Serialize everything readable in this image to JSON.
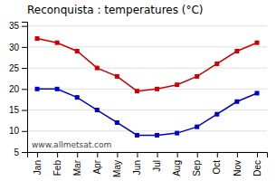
{
  "chart_data": {
    "type": "line",
    "title": "Reconquista : temperatures (°C)",
    "categories": [
      "Jan",
      "Feb",
      "Mar",
      "Apr",
      "May",
      "Jun",
      "Jul",
      "Aug",
      "Sep",
      "Oct",
      "Nov",
      "Dec"
    ],
    "series": [
      {
        "color": "#cc0000",
        "marker": "square",
        "values": [
          32,
          31,
          29,
          25,
          23,
          19.5,
          20,
          21,
          23,
          26,
          29,
          31
        ]
      },
      {
        "color": "#0000cc",
        "marker": "square",
        "values": [
          20,
          20,
          18,
          15,
          12,
          9,
          9,
          9.5,
          11,
          14,
          17,
          19
        ]
      }
    ],
    "ylim": [
      5,
      36
    ],
    "yticks": [
      5,
      10,
      15,
      20,
      25,
      30,
      35
    ],
    "grid": true,
    "annotations": [
      "www.allmetsat.com"
    ]
  }
}
